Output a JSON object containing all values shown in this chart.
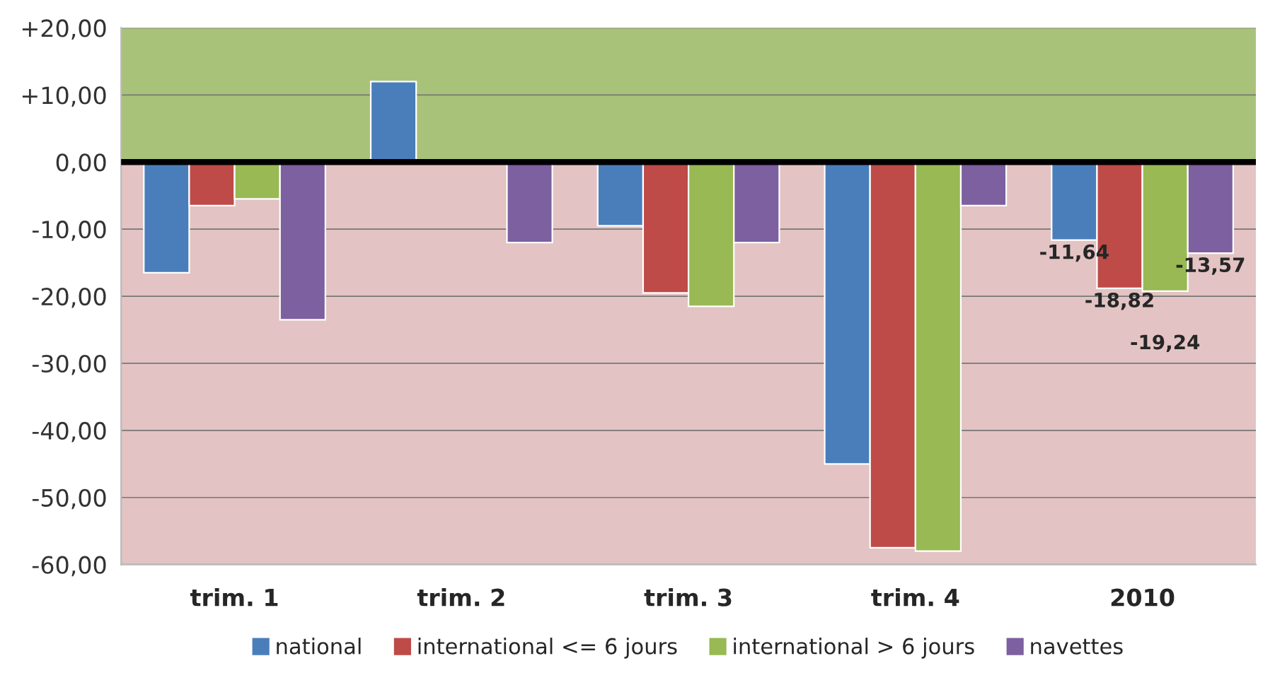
{
  "chart_data": {
    "type": "bar",
    "categories": [
      "trim. 1",
      "trim. 2",
      "trim. 3",
      "trim. 4",
      "2010"
    ],
    "series": [
      {
        "name": "national",
        "color": "#4a7ebb",
        "values": [
          -16.5,
          12,
          -9.5,
          -45,
          -11.64
        ],
        "value_labels": [
          null,
          null,
          null,
          null,
          "-11,64"
        ]
      },
      {
        "name": "international <= 6 jours",
        "color": "#be4b48",
        "values": [
          -6.5,
          null,
          -19.5,
          -57.5,
          -18.82
        ],
        "value_labels": [
          null,
          null,
          null,
          null,
          "-18,82"
        ]
      },
      {
        "name": "international > 6 jours",
        "color": "#98b954",
        "values": [
          -5.5,
          null,
          -21.5,
          -58,
          -19.24
        ],
        "value_labels": [
          null,
          null,
          null,
          null,
          "-19,24"
        ]
      },
      {
        "name": "navettes",
        "color": "#7d60a0",
        "values": [
          -23.5,
          -12,
          -12,
          -6.5,
          -13.57
        ],
        "value_labels": [
          null,
          null,
          null,
          null,
          "-13,57"
        ]
      }
    ],
    "ylim": [
      -60,
      20
    ],
    "yticks": [
      {
        "value": 20,
        "label": "+20,00"
      },
      {
        "value": 10,
        "label": "+10,00"
      },
      {
        "value": 0,
        "label": "0,00"
      },
      {
        "value": -10,
        "label": "-10,00"
      },
      {
        "value": -20,
        "label": "-20,00"
      },
      {
        "value": -30,
        "label": "-30,00"
      },
      {
        "value": -40,
        "label": "-40,00"
      },
      {
        "value": -50,
        "label": "-50,00"
      },
      {
        "value": -60,
        "label": "-60,00"
      }
    ],
    "bands": [
      {
        "axis": "y",
        "from": 0,
        "to": 20,
        "color": "#a9c27a"
      },
      {
        "axis": "y",
        "from": -60,
        "to": 0,
        "color": "#e3c3c3"
      }
    ],
    "grid": "y",
    "legend": "bottom"
  }
}
